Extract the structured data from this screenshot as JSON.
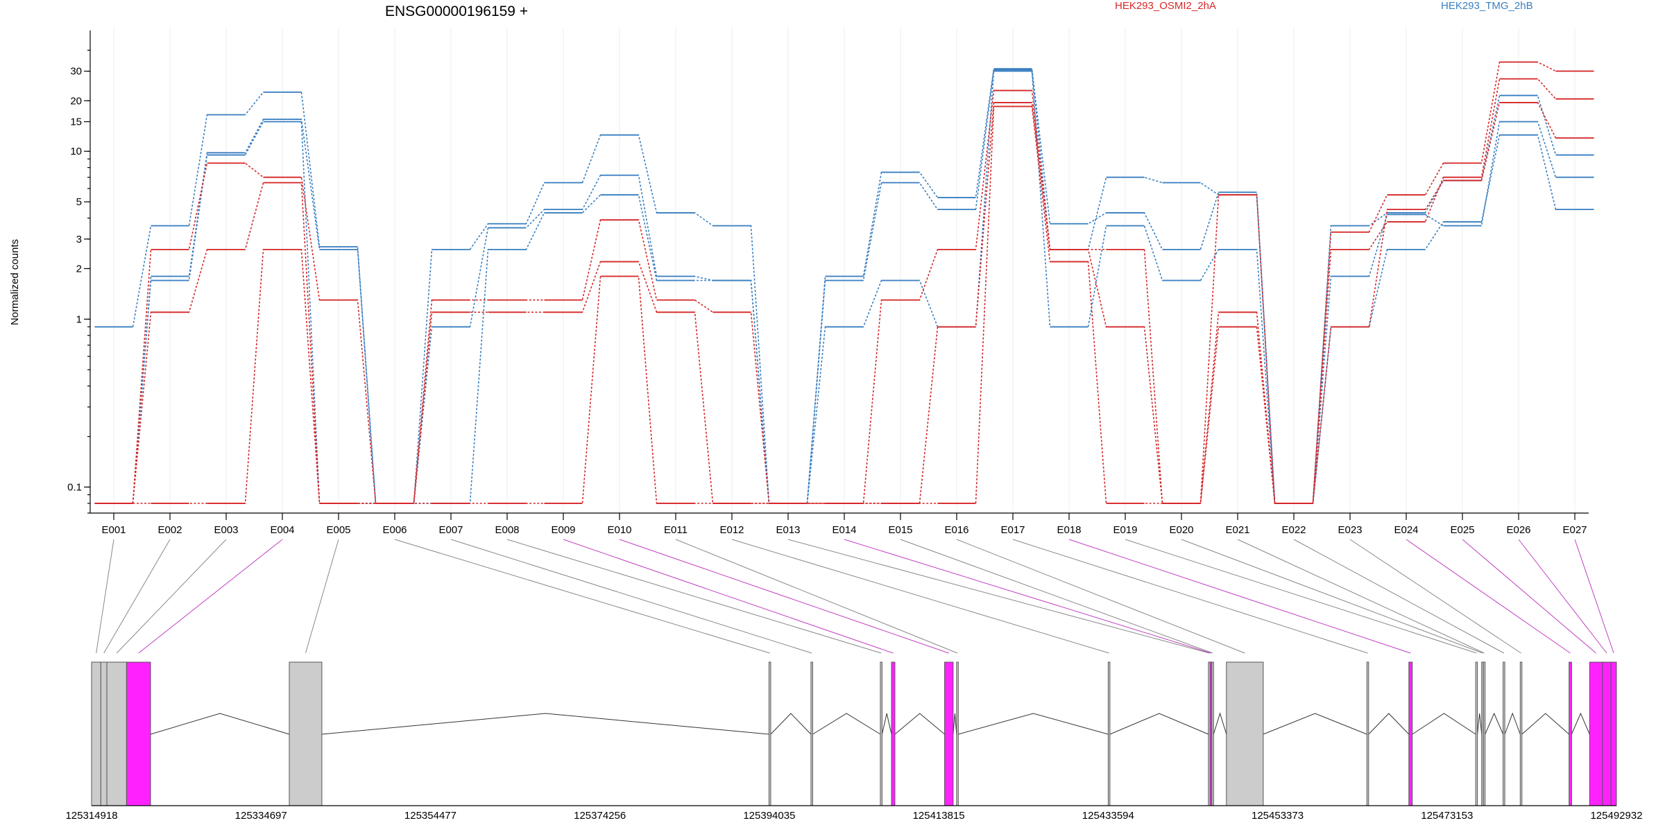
{
  "chart_data": {
    "type": "line",
    "title": "ENSG00000196159 +",
    "ylabel": "Normalized counts",
    "yscale": "log",
    "yticks": [
      0.1,
      1,
      2,
      3,
      5,
      10,
      15,
      20,
      30
    ],
    "ylim": [
      0.07,
      45
    ],
    "categories": [
      "E001",
      "E002",
      "E003",
      "E004",
      "E005",
      "E006",
      "E007",
      "E008",
      "E009",
      "E010",
      "E011",
      "E012",
      "E013",
      "E014",
      "E015",
      "E016",
      "E017",
      "E018",
      "E019",
      "E020",
      "E021",
      "E022",
      "E023",
      "E024",
      "E025",
      "E026",
      "E027"
    ],
    "legend": [
      {
        "label": "HEK293_OSMI2_2hA",
        "color": "#d62728"
      },
      {
        "label": "HEK293_TMG_2hB",
        "color": "#3a7fc1"
      }
    ],
    "series": [
      {
        "group": "HEK293_TMG_2hB",
        "color": "#3a7fc1",
        "values": [
          0.9,
          3.6,
          16.5,
          22.5,
          2.7,
          0.08,
          2.6,
          3.7,
          6.5,
          12.5,
          4.3,
          3.6,
          0.08,
          1.8,
          7.5,
          5.3,
          31.0,
          3.7,
          4.3,
          2.6,
          5.7,
          0.08,
          3.6,
          4.3,
          6.7,
          21.5,
          9.5
        ]
      },
      {
        "group": "HEK293_TMG_2hB",
        "color": "#3a7fc1",
        "values": [
          0.08,
          1.8,
          9.8,
          15.5,
          2.6,
          0.08,
          0.9,
          3.5,
          4.5,
          7.2,
          1.8,
          1.7,
          0.08,
          1.7,
          6.5,
          4.5,
          30.5,
          2.6,
          7.0,
          6.5,
          5.5,
          0.08,
          1.8,
          4.2,
          3.6,
          15.0,
          7.0
        ]
      },
      {
        "group": "HEK293_TMG_2hB",
        "color": "#3a7fc1",
        "values": [
          0.08,
          1.7,
          9.5,
          15.0,
          0.08,
          0.08,
          0.08,
          2.6,
          4.3,
          5.5,
          1.7,
          1.7,
          0.08,
          0.9,
          1.7,
          0.9,
          30.0,
          0.9,
          3.6,
          1.7,
          2.6,
          0.08,
          0.9,
          2.6,
          3.8,
          12.5,
          4.5
        ]
      },
      {
        "group": "HEK293_OSMI2_2hA",
        "color": "#d62728",
        "values": [
          0.08,
          2.6,
          8.5,
          7.0,
          1.3,
          0.08,
          1.3,
          1.3,
          1.3,
          3.9,
          1.3,
          1.1,
          0.08,
          0.08,
          1.3,
          2.6,
          23.0,
          2.6,
          2.6,
          0.08,
          5.5,
          0.08,
          3.3,
          5.5,
          8.5,
          34.0,
          30.0
        ]
      },
      {
        "group": "HEK293_OSMI2_2hA",
        "color": "#d62728",
        "values": [
          0.08,
          1.1,
          2.6,
          6.5,
          0.08,
          0.08,
          1.1,
          1.1,
          1.1,
          2.2,
          1.1,
          0.08,
          0.08,
          0.08,
          0.08,
          0.9,
          19.5,
          2.6,
          0.9,
          0.08,
          1.1,
          0.08,
          2.6,
          3.8,
          7.0,
          27.0,
          20.5
        ]
      },
      {
        "group": "HEK293_OSMI2_2hA",
        "color": "#d62728",
        "values": [
          0.08,
          0.08,
          0.08,
          2.6,
          0.08,
          0.08,
          0.08,
          0.08,
          0.08,
          1.8,
          0.08,
          0.08,
          0.08,
          0.08,
          0.08,
          0.08,
          18.5,
          2.2,
          0.08,
          0.08,
          0.9,
          0.08,
          0.9,
          4.5,
          6.7,
          19.5,
          12.0
        ]
      }
    ],
    "genome_axis": {
      "range": [
        125314918,
        125492932
      ],
      "tick_labels": [
        "125314918",
        "125334697",
        "125354477",
        "125374256",
        "125394035",
        "125413815",
        "125433594",
        "125453373",
        "125473153",
        "125492932"
      ]
    },
    "exons": [
      {
        "id": "E001",
        "start": 125314918,
        "end": 125316000,
        "color": "#cccccc"
      },
      {
        "id": "E002",
        "start": 125316000,
        "end": 125316700,
        "color": "#cccccc"
      },
      {
        "id": "E003",
        "start": 125316700,
        "end": 125319000,
        "color": "#cccccc"
      },
      {
        "id": "E004",
        "start": 125319000,
        "end": 125321800,
        "color": "#ff22ff"
      },
      {
        "id": "E005",
        "start": 125338000,
        "end": 125341800,
        "color": "#cccccc"
      },
      {
        "id": "E006",
        "start": 125394000,
        "end": 125394200,
        "color": "#cccccc"
      },
      {
        "id": "E007",
        "start": 125398900,
        "end": 125399100,
        "color": "#cccccc"
      },
      {
        "id": "E008",
        "start": 125407000,
        "end": 125407200,
        "color": "#cccccc"
      },
      {
        "id": "E009",
        "start": 125408300,
        "end": 125408700,
        "color": "#ff22ff"
      },
      {
        "id": "E010",
        "start": 125414500,
        "end": 125415500,
        "color": "#ff22ff"
      },
      {
        "id": "E011",
        "start": 125415900,
        "end": 125416100,
        "color": "#cccccc"
      },
      {
        "id": "E012",
        "start": 125433600,
        "end": 125433800,
        "color": "#cccccc"
      },
      {
        "id": "E013",
        "start": 125445300,
        "end": 125445500,
        "color": "#cccccc"
      },
      {
        "id": "E014",
        "start": 125445500,
        "end": 125445700,
        "color": "#ff22ff"
      },
      {
        "id": "E015",
        "start": 125445700,
        "end": 125445900,
        "color": "#cccccc"
      },
      {
        "id": "E016",
        "start": 125447400,
        "end": 125451700,
        "color": "#cccccc"
      },
      {
        "id": "E017",
        "start": 125463800,
        "end": 125464000,
        "color": "#cccccc"
      },
      {
        "id": "E018",
        "start": 125468700,
        "end": 125469100,
        "color": "#ff22ff"
      },
      {
        "id": "E019",
        "start": 125476500,
        "end": 125476700,
        "color": "#cccccc"
      },
      {
        "id": "E020",
        "start": 125477200,
        "end": 125477400,
        "color": "#cccccc"
      },
      {
        "id": "E021",
        "start": 125477400,
        "end": 125477600,
        "color": "#cccccc"
      },
      {
        "id": "E022",
        "start": 125479700,
        "end": 125479900,
        "color": "#cccccc"
      },
      {
        "id": "E023",
        "start": 125481700,
        "end": 125481900,
        "color": "#cccccc"
      },
      {
        "id": "E024",
        "start": 125487400,
        "end": 125487700,
        "color": "#ff22ff"
      },
      {
        "id": "E025",
        "start": 125489800,
        "end": 125491300,
        "color": "#ff22ff"
      },
      {
        "id": "E026",
        "start": 125491300,
        "end": 125492300,
        "color": "#ff22ff"
      },
      {
        "id": "E027",
        "start": 125492300,
        "end": 125492932,
        "color": "#ff22ff"
      }
    ],
    "connector_colors": {
      "constitutive": "#888888",
      "highlight": "#c040c0"
    }
  }
}
